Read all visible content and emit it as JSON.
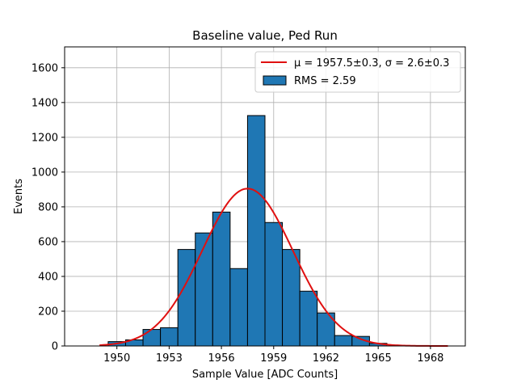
{
  "chart_data": {
    "type": "bar",
    "title": "Baseline value, Ped Run",
    "xlabel": "Sample Value [ADC Counts]",
    "ylabel": "Events",
    "xlim": [
      1947.0,
      1970.0
    ],
    "ylim": [
      0,
      1720
    ],
    "grid": true,
    "xticks": [
      1950,
      1953,
      1956,
      1959,
      1962,
      1965,
      1968
    ],
    "yticks": [
      0,
      200,
      400,
      600,
      800,
      1000,
      1200,
      1400,
      1600
    ],
    "bin_edges": [
      1949.5,
      1950.5,
      1951.5,
      1952.5,
      1953.5,
      1954.5,
      1955.5,
      1956.5,
      1957.5,
      1958.5,
      1959.5,
      1960.5,
      1961.5,
      1962.5,
      1963.5,
      1964.5,
      1965.5
    ],
    "counts": [
      25,
      35,
      95,
      105,
      555,
      650,
      770,
      445,
      1325,
      710,
      555,
      315,
      190,
      60,
      55,
      15
    ],
    "bar_color": "#1f77b4",
    "fit": {
      "type": "gaussian",
      "mu": 1957.5,
      "sigma": 2.6,
      "amplitude": 905,
      "x_range": [
        1949.0,
        1969.0
      ],
      "color": "#e01010"
    },
    "legend": {
      "position": "upper-right",
      "entries": [
        {
          "label": "μ = 1957.5±0.3, σ = 2.6±0.3",
          "kind": "line"
        },
        {
          "label": "RMS = 2.59",
          "kind": "patch"
        }
      ]
    }
  }
}
